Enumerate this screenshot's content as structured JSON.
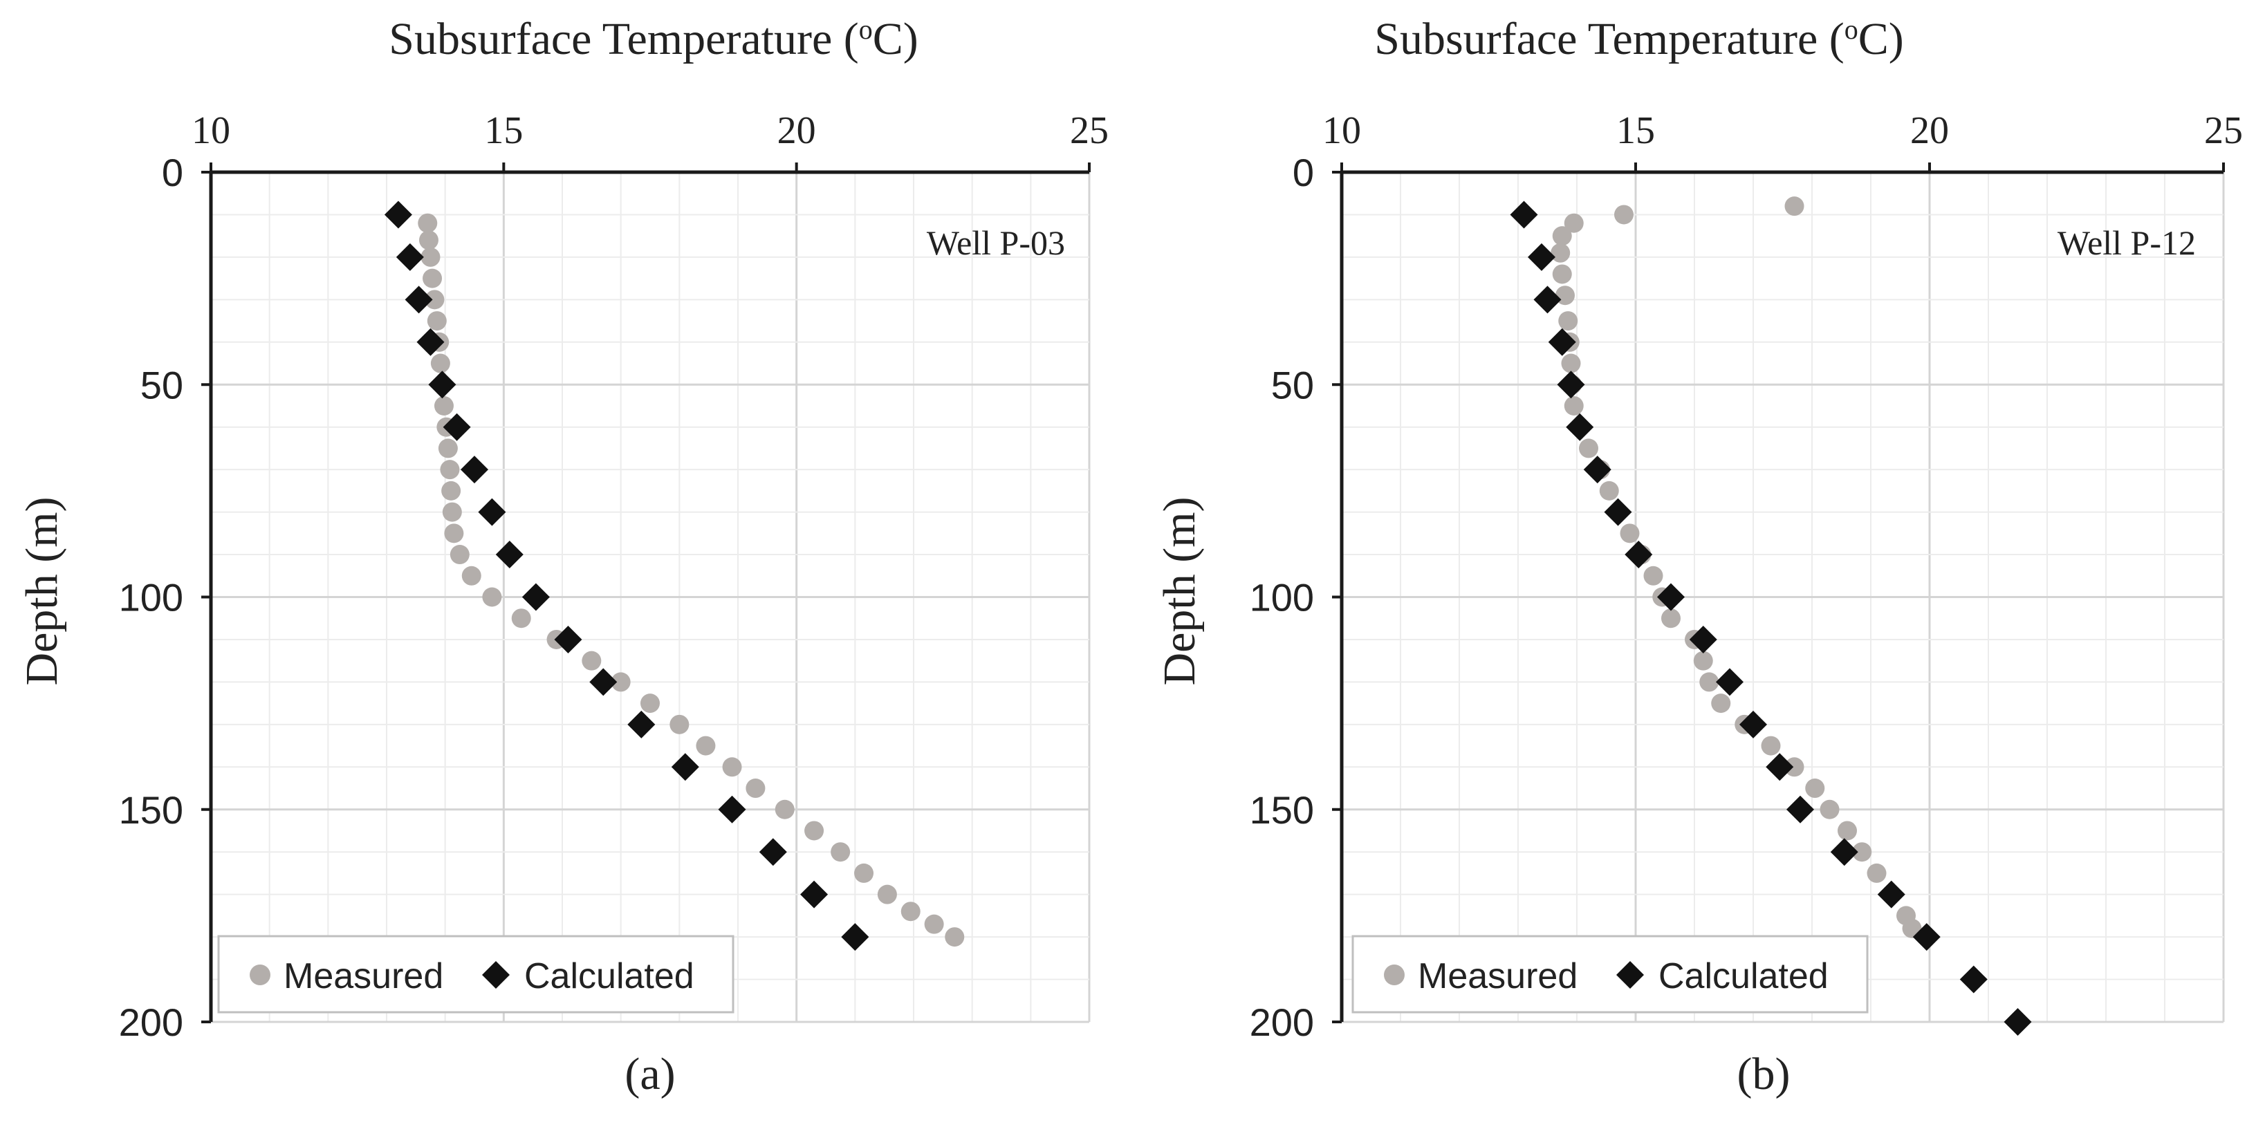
{
  "chart_data": [
    {
      "type": "scatter",
      "panel_label": "(a)",
      "annotation": "Well P-03",
      "xlabel": "Subsurface Temperature (",
      "xlabel_sup": "o",
      "xlabel_unit": "C)",
      "ylabel": "Depth (m)",
      "xlim": [
        10,
        25
      ],
      "ylim": [
        0,
        200
      ],
      "x_ticks": [
        10,
        15,
        20,
        25
      ],
      "y_ticks": [
        0,
        50,
        100,
        150,
        200
      ],
      "legend": {
        "placement": "bottom-left",
        "entries": [
          "Measured",
          "Calculated"
        ]
      },
      "series": [
        {
          "name": "Measured",
          "marker": "circle",
          "color": "#b3aeab",
          "points": [
            [
              13.7,
              12
            ],
            [
              13.72,
              16
            ],
            [
              13.75,
              20
            ],
            [
              13.78,
              25
            ],
            [
              13.82,
              30
            ],
            [
              13.86,
              35
            ],
            [
              13.9,
              40
            ],
            [
              13.92,
              45
            ],
            [
              13.95,
              50
            ],
            [
              13.98,
              55
            ],
            [
              14.02,
              60
            ],
            [
              14.05,
              65
            ],
            [
              14.08,
              70
            ],
            [
              14.1,
              75
            ],
            [
              14.12,
              80
            ],
            [
              14.15,
              85
            ],
            [
              14.25,
              90
            ],
            [
              14.45,
              95
            ],
            [
              14.8,
              100
            ],
            [
              15.3,
              105
            ],
            [
              15.9,
              110
            ],
            [
              16.5,
              115
            ],
            [
              17.0,
              120
            ],
            [
              17.5,
              125
            ],
            [
              18.0,
              130
            ],
            [
              18.45,
              135
            ],
            [
              18.9,
              140
            ],
            [
              19.3,
              145
            ],
            [
              19.8,
              150
            ],
            [
              20.3,
              155
            ],
            [
              20.75,
              160
            ],
            [
              21.15,
              165
            ],
            [
              21.55,
              170
            ],
            [
              21.95,
              174
            ],
            [
              22.35,
              177
            ],
            [
              22.7,
              180
            ]
          ]
        },
        {
          "name": "Calculated",
          "marker": "diamond",
          "color": "#111111",
          "points": [
            [
              13.2,
              10
            ],
            [
              13.4,
              20
            ],
            [
              13.55,
              30
            ],
            [
              13.75,
              40
            ],
            [
              13.95,
              50
            ],
            [
              14.2,
              60
            ],
            [
              14.5,
              70
            ],
            [
              14.8,
              80
            ],
            [
              15.1,
              90
            ],
            [
              15.55,
              100
            ],
            [
              16.1,
              110
            ],
            [
              16.7,
              120
            ],
            [
              17.35,
              130
            ],
            [
              18.1,
              140
            ],
            [
              18.9,
              150
            ],
            [
              19.6,
              160
            ],
            [
              20.3,
              170
            ],
            [
              21.0,
              180
            ]
          ]
        }
      ]
    },
    {
      "type": "scatter",
      "panel_label": "(b)",
      "annotation": "Well P-12",
      "xlabel": "Subsurface Temperature (",
      "xlabel_sup": "o",
      "xlabel_unit": "C)",
      "ylabel": "Depth (m)",
      "xlim": [
        10,
        25
      ],
      "ylim": [
        0,
        200
      ],
      "x_ticks": [
        10,
        15,
        20,
        25
      ],
      "y_ticks": [
        0,
        50,
        100,
        150,
        200
      ],
      "legend": {
        "placement": "bottom-left",
        "entries": [
          "Measured",
          "Calculated"
        ]
      },
      "series": [
        {
          "name": "Measured",
          "marker": "circle",
          "color": "#b3aeab",
          "points": [
            [
              17.7,
              8
            ],
            [
              14.8,
              10
            ],
            [
              13.95,
              12
            ],
            [
              13.75,
              15
            ],
            [
              13.72,
              19
            ],
            [
              13.75,
              24
            ],
            [
              13.8,
              29
            ],
            [
              13.85,
              35
            ],
            [
              13.88,
              40
            ],
            [
              13.9,
              45
            ],
            [
              13.92,
              50
            ],
            [
              13.95,
              55
            ],
            [
              14.05,
              60
            ],
            [
              14.2,
              65
            ],
            [
              14.4,
              70
            ],
            [
              14.55,
              75
            ],
            [
              14.7,
              80
            ],
            [
              14.9,
              85
            ],
            [
              15.1,
              90
            ],
            [
              15.3,
              95
            ],
            [
              15.45,
              100
            ],
            [
              15.6,
              105
            ],
            [
              16.0,
              110
            ],
            [
              16.15,
              115
            ],
            [
              16.25,
              120
            ],
            [
              16.45,
              125
            ],
            [
              16.85,
              130
            ],
            [
              17.3,
              135
            ],
            [
              17.7,
              140
            ],
            [
              18.05,
              145
            ],
            [
              18.3,
              150
            ],
            [
              18.6,
              155
            ],
            [
              18.85,
              160
            ],
            [
              19.1,
              165
            ],
            [
              19.35,
              170
            ],
            [
              19.6,
              175
            ],
            [
              19.7,
              178
            ]
          ]
        },
        {
          "name": "Calculated",
          "marker": "diamond",
          "color": "#111111",
          "points": [
            [
              13.1,
              10
            ],
            [
              13.4,
              20
            ],
            [
              13.5,
              30
            ],
            [
              13.75,
              40
            ],
            [
              13.9,
              50
            ],
            [
              14.05,
              60
            ],
            [
              14.35,
              70
            ],
            [
              14.7,
              80
            ],
            [
              15.05,
              90
            ],
            [
              15.6,
              100
            ],
            [
              16.15,
              110
            ],
            [
              16.6,
              120
            ],
            [
              17.0,
              130
            ],
            [
              17.45,
              140
            ],
            [
              17.8,
              150
            ],
            [
              18.55,
              160
            ],
            [
              19.35,
              170
            ],
            [
              19.95,
              180
            ],
            [
              20.75,
              190
            ],
            [
              21.5,
              200
            ]
          ]
        }
      ]
    }
  ]
}
